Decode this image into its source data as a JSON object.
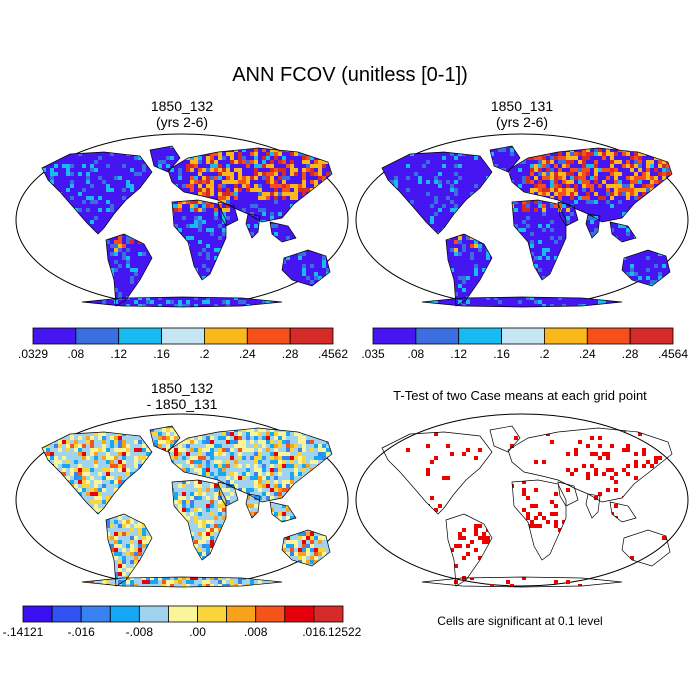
{
  "title": "ANN FCOV (unitless [0-1])",
  "panels": [
    {
      "id": "case1",
      "title_line1": "1850_132",
      "title_line2": "(yrs 2-6)",
      "colorbar": {
        "colors": [
          "#4516f2",
          "#3b6fe0",
          "#18bbf0",
          "#c6e5f2",
          "#fbb81c",
          "#f5501c",
          "#d42a28"
        ],
        "labels": [
          ".0329",
          ".08",
          ".12",
          ".16",
          ".2",
          ".24",
          ".28",
          ".4562"
        ]
      }
    },
    {
      "id": "case2",
      "title_line1": "1850_131",
      "title_line2": "(yrs 2-6)",
      "colorbar": {
        "colors": [
          "#4516f2",
          "#3b6fe0",
          "#18bbf0",
          "#c6e5f2",
          "#fbb81c",
          "#f5501c",
          "#d42a28"
        ],
        "labels": [
          ".035",
          ".08",
          ".12",
          ".16",
          ".2",
          ".24",
          ".28",
          ".4564"
        ]
      }
    },
    {
      "id": "diff",
      "title_line1": "1850_132",
      "title_line2": "- 1850_131",
      "colorbar": {
        "colors": [
          "#3a10f2",
          "#2f52f0",
          "#3a82f2",
          "#16a7f4",
          "#9fd3f0",
          "#fbf59a",
          "#f9d43b",
          "#f8a21c",
          "#f4541a",
          "#e6000c",
          "#d42a28"
        ],
        "labels": [
          "-.14121",
          "-.016",
          "-.008",
          ".00",
          ".008",
          ".016",
          ".12522"
        ]
      }
    },
    {
      "id": "ttest",
      "title_line1": "T-Test of two Case means at each grid point",
      "significance_color": "#ee0000",
      "note": "Cells are significant at 0.1 level"
    }
  ]
}
